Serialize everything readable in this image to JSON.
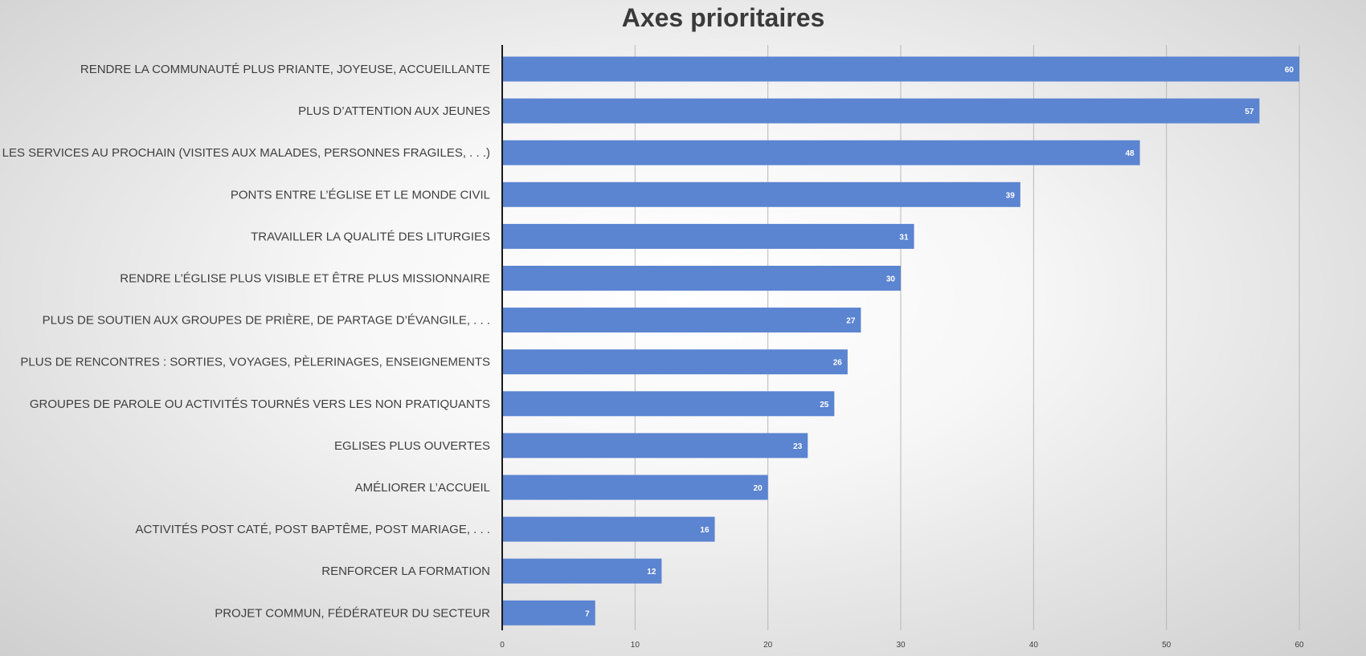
{
  "chart_data": {
    "type": "bar",
    "orientation": "horizontal",
    "title": "Axes prioritaires",
    "categories": [
      "RENDRE LA COMMUNAUTÉ PLUS PRIANTE, JOYEUSE, ACCUEILLANTE",
      "PLUS D’ATTENTION AUX JEUNES",
      "RENFORCER LES SERVICES AU PROCHAIN (VISITES AUX MALADES, PERSONNES FRAGILES, . . .)",
      "PONTS ENTRE L’ÉGLISE ET LE MONDE CIVIL",
      "TRAVAILLER LA QUALITÉ DES LITURGIES",
      "RENDRE L’ÉGLISE PLUS VISIBLE ET ÊTRE PLUS MISSIONNAIRE",
      "PLUS DE SOUTIEN AUX GROUPES DE PRIÈRE, DE PARTAGE D’ÉVANGILE, . . .",
      "PLUS DE RENCONTRES : SORTIES, VOYAGES, PÈLERINAGES, ENSEIGNEMENTS",
      "GROUPES DE PAROLE OU ACTIVITÉS TOURNÉS VERS LES NON PRATIQUANTS",
      "EGLISES PLUS OUVERTES",
      "AMÉLIORER L’ACCUEIL",
      "ACTIVITÉS POST CATÉ, POST BAPTÊME, POST MARIAGE, . . .",
      "RENFORCER LA FORMATION",
      "PROJET COMMUN, FÉDÉRATEUR DU SECTEUR"
    ],
    "values": [
      60,
      57,
      48,
      39,
      31,
      30,
      27,
      26,
      25,
      23,
      20,
      16,
      12,
      7
    ],
    "xlim": [
      0,
      60
    ],
    "xticks": [
      0,
      10,
      20,
      30,
      40,
      50,
      60
    ],
    "grid": true,
    "legend": "none",
    "bar_color": "#5b84d1",
    "data_labels": "inside-end"
  }
}
